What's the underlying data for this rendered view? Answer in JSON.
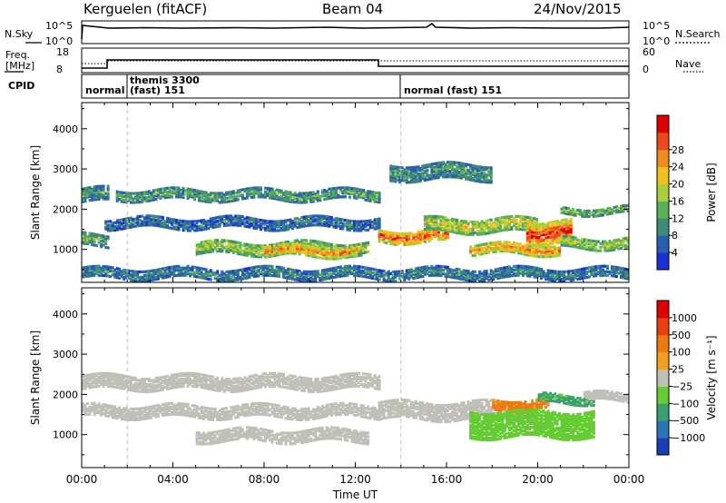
{
  "header": {
    "station": "Kerguelen (fitACF)",
    "beam": "Beam 04",
    "date": "24/Nov/2015"
  },
  "panels": {
    "nsky": {
      "left_label": "N.Sky",
      "top_tick": "10^5",
      "bottom_tick": "10^0"
    },
    "nsearch": {
      "label": "N.Search",
      "top_tick": "10^5",
      "bottom_tick": "10^0"
    },
    "freq": {
      "label": "Freq.",
      "unit": "[MHz]",
      "top_tick": "18",
      "bottom_tick": "8"
    },
    "nave": {
      "label": "Nave",
      "top_tick": "60",
      "bottom_tick": "0"
    },
    "cpid": {
      "label": "CPID",
      "segments": [
        {
          "name": "normal",
          "start_h": 0.0,
          "end_h": 2.0
        },
        {
          "name": "themis 3300",
          "sub": "(fast) 151",
          "start_h": 2.0,
          "end_h": 14.0
        },
        {
          "name": "normal (fast) 151",
          "start_h": 14.0,
          "end_h": 24.0
        }
      ]
    }
  },
  "chart_data": [
    {
      "type": "heatmap",
      "name": "power",
      "ylabel": "Slant Range [km]",
      "yticks": [
        1000,
        2000,
        3000,
        4000
      ],
      "ylim": [
        180,
        4650
      ],
      "xlim_hours": [
        0,
        24
      ],
      "colorbar": {
        "label": "Power [dB]",
        "ticks": [
          "4",
          "8",
          "12",
          "16",
          "20",
          "24",
          "28"
        ],
        "colors": [
          "#1a2fd6",
          "#2a5fb0",
          "#3f8a7a",
          "#5cb055",
          "#a6cf3a",
          "#f0c020",
          "#f28a1e",
          "#ea4a1c",
          "#e00000"
        ]
      },
      "bands": [
        {
          "start_h": 0.0,
          "end_h": 1.2,
          "r0": 2150,
          "r1": 2500,
          "level": 0.3
        },
        {
          "start_h": 1.5,
          "end_h": 13.0,
          "r0": 2200,
          "r1": 2450,
          "level": 0.35
        },
        {
          "start_h": 0.0,
          "end_h": 1.2,
          "r0": 1050,
          "r1": 1350,
          "level": 0.4
        },
        {
          "start_h": 1.0,
          "end_h": 13.0,
          "r0": 1500,
          "r1": 1750,
          "level": 0.2
        },
        {
          "start_h": 5.0,
          "end_h": 12.5,
          "r0": 850,
          "r1": 1150,
          "level": 0.55
        },
        {
          "start_h": 8.0,
          "end_h": 12.0,
          "r0": 800,
          "r1": 1050,
          "level": 0.8
        },
        {
          "start_h": 13.0,
          "end_h": 16.0,
          "r0": 1150,
          "r1": 1450,
          "level": 0.9
        },
        {
          "start_h": 15.0,
          "end_h": 20.0,
          "r0": 1400,
          "r1": 1750,
          "level": 0.6
        },
        {
          "start_h": 17.0,
          "end_h": 21.0,
          "r0": 850,
          "r1": 1100,
          "level": 0.8
        },
        {
          "start_h": 19.5,
          "end_h": 21.5,
          "r0": 1100,
          "r1": 1650,
          "level": 0.95
        },
        {
          "start_h": 21.0,
          "end_h": 24.0,
          "r0": 1000,
          "r1": 1250,
          "level": 0.55
        },
        {
          "start_h": 21.0,
          "end_h": 24.0,
          "r0": 1850,
          "r1": 2000,
          "level": 0.45
        },
        {
          "start_h": 13.5,
          "end_h": 18.0,
          "r0": 2700,
          "r1": 3100,
          "level": 0.3
        },
        {
          "start_h": 0.0,
          "end_h": 24.0,
          "r0": 250,
          "r1": 480,
          "level": 0.25
        }
      ]
    },
    {
      "type": "heatmap",
      "name": "velocity",
      "ylabel": "Slant Range [km]",
      "yticks": [
        1000,
        2000,
        3000,
        4000
      ],
      "ylim": [
        180,
        4650
      ],
      "xlim_hours": [
        0,
        24
      ],
      "xticks": [
        "00:00",
        "04:00",
        "08:00",
        "12:00",
        "16:00",
        "20:00",
        "00:00"
      ],
      "xlabel": "Time UT",
      "colorbar": {
        "label": "Velocity [m s⁻¹]",
        "ticks": [
          "1000",
          "500",
          "100",
          "25",
          "−25",
          "−100",
          "−500",
          "−1000"
        ],
        "colors": [
          "#1a3fb4",
          "#2a74b8",
          "#3aa070",
          "#66cc33",
          "#c0c0b8",
          "#f0a020",
          "#ee7a10",
          "#ea4010",
          "#e00000"
        ]
      },
      "bands": [
        {
          "start_h": 0.0,
          "end_h": 13.0,
          "r0": 2100,
          "r1": 2450,
          "level": 0.0
        },
        {
          "start_h": 0.0,
          "end_h": 13.0,
          "r0": 1400,
          "r1": 1700,
          "level": 0.0
        },
        {
          "start_h": 5.0,
          "end_h": 12.5,
          "r0": 800,
          "r1": 1100,
          "level": 0.0
        },
        {
          "start_h": 13.0,
          "end_h": 20.0,
          "r0": 1350,
          "r1": 1800,
          "level": 0.0
        },
        {
          "start_h": 18.0,
          "end_h": 20.5,
          "r0": 1600,
          "r1": 1850,
          "level": -0.6
        },
        {
          "start_h": 20.0,
          "end_h": 22.5,
          "r0": 1750,
          "r1": 1950,
          "level": 0.7
        },
        {
          "start_h": 17.0,
          "end_h": 22.5,
          "r0": 900,
          "r1": 1550,
          "level": 0.35
        },
        {
          "start_h": 22.0,
          "end_h": 24.0,
          "r0": 1800,
          "r1": 2000,
          "level": 0.0
        }
      ]
    }
  ]
}
